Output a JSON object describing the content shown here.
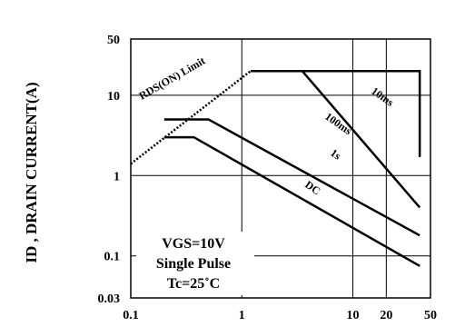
{
  "chart_data": {
    "type": "line",
    "title": "",
    "ylabel": "ID , DRAIN CURRENT(A)",
    "xlabel": "",
    "xscale": "log",
    "yscale": "log",
    "xlim": [
      0.1,
      50
    ],
    "ylim": [
      0.03,
      50
    ],
    "x_ticks": [
      "0.1",
      "1",
      "10",
      "20",
      "50"
    ],
    "y_ticks": [
      "50",
      "10",
      "1",
      "0.1",
      "0.03"
    ],
    "grid": true,
    "rds_limit": {
      "label": "RDS(ON) Limit",
      "style": "dotted",
      "points": [
        [
          0.1,
          1.4
        ],
        [
          1.2,
          20
        ]
      ]
    },
    "series": [
      {
        "name": "10ms",
        "points": [
          [
            1.2,
            20
          ],
          [
            40,
            20
          ],
          [
            40,
            1.7
          ]
        ]
      },
      {
        "name": "100ms",
        "points": [
          [
            3.5,
            20
          ],
          [
            40,
            0.4
          ]
        ]
      },
      {
        "name": "1s",
        "points": [
          [
            0.2,
            5
          ],
          [
            0.5,
            5
          ],
          [
            40,
            0.18
          ]
        ]
      },
      {
        "name": "DC",
        "points": [
          [
            0.2,
            3
          ],
          [
            0.37,
            3
          ],
          [
            40,
            0.075
          ]
        ]
      }
    ],
    "annotations": {
      "vgs": "VGS=10V",
      "pulse": "Single Pulse",
      "tc": "Tc=25˚C"
    }
  }
}
